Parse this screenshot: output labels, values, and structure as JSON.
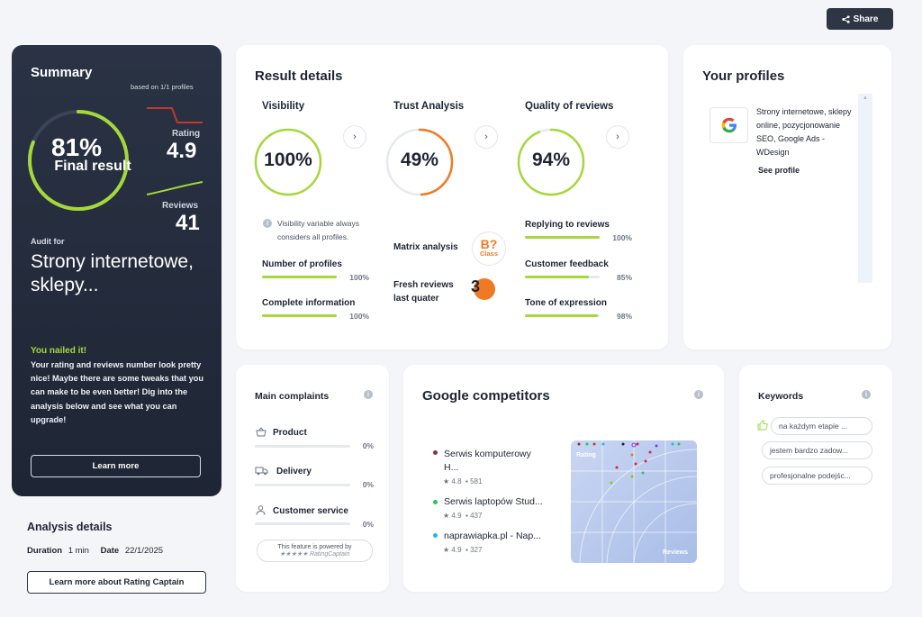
{
  "header": {
    "share_label": "Share"
  },
  "summary": {
    "title": "Summary",
    "based_on": "based on 1/1 profiles",
    "score": "81%",
    "score_value": 81,
    "score_label": "Final result",
    "rating_label": "Rating",
    "rating_value": "4.9",
    "reviews_label": "Reviews",
    "reviews_value": "41",
    "audit_for": "Audit for",
    "audit_name": "Strony internetowe, sklepy...",
    "nailed_title": "You nailed it!",
    "nailed_text": "Your rating and reviews number look pretty nice! Maybe there are some tweaks that you can make to be even better! Dig into the analysis below and see what you can upgrade!",
    "learn_more": "Learn more"
  },
  "analysis": {
    "title": "Analysis details",
    "duration_label": "Duration",
    "duration_value": "1 min",
    "date_label": "Date",
    "date_value": "22/1/2025",
    "button": "Learn more about Rating Captain"
  },
  "result_details": {
    "title": "Result details",
    "visibility": {
      "title": "Visibility",
      "value": "100%",
      "fraction": 1.0,
      "note": "Visibility variable always considers all profiles.",
      "metrics": [
        {
          "label": "Number of profiles",
          "pct": "100%",
          "fraction": 1.0
        },
        {
          "label": "Complete information",
          "pct": "100%",
          "fraction": 1.0
        }
      ]
    },
    "trust": {
      "title": "Trust Analysis",
      "value": "49%",
      "fraction": 0.49,
      "matrix_label": "Matrix analysis",
      "matrix_badge": "B?",
      "matrix_class": "Class",
      "fresh_label": "Fresh reviews last quater",
      "fresh_value": "3"
    },
    "quality": {
      "title": "Quality of reviews",
      "value": "94%",
      "fraction": 0.94,
      "metrics": [
        {
          "label": "Replying to reviews",
          "pct": "100%",
          "fraction": 1.0
        },
        {
          "label": "Customer feedback",
          "pct": "85%",
          "fraction": 0.85
        },
        {
          "label": "Tone of expression",
          "pct": "98%",
          "fraction": 0.98
        }
      ]
    }
  },
  "profiles": {
    "title": "Your profiles",
    "items": [
      {
        "text": "Strony internetowe, sklepy online, pozycjonowanie SEO, Google Ads - WDesign",
        "link": "See profile"
      }
    ]
  },
  "complaints": {
    "title": "Main complaints",
    "items": [
      {
        "label": "Product",
        "pct": "0%",
        "icon": "basket-icon"
      },
      {
        "label": "Delivery",
        "pct": "0%",
        "icon": "truck-icon"
      },
      {
        "label": "Customer service",
        "pct": "0%",
        "icon": "person-icon"
      }
    ],
    "powered_by": "This feature is powered by",
    "powered_brand": "RatingCaptain"
  },
  "competitors": {
    "title": "Google competitors",
    "items": [
      {
        "name": "Serwis komputerowy H...",
        "rating": "4.8",
        "reviews": "581",
        "color": "#8b2f4a"
      },
      {
        "name": "Serwis laptopów Stud...",
        "rating": "4.9",
        "reviews": "437",
        "color": "#22c55e"
      },
      {
        "name": "naprawiapka.pl - Nap...",
        "rating": "4.9",
        "reviews": "327",
        "color": "#22b8e6"
      }
    ],
    "chart_y_label": "Rating",
    "chart_x_label": "Reviews"
  },
  "keywords": {
    "title": "Keywords",
    "items": [
      "na każdym etapie ...",
      "jestem bardzo zadow...",
      "profesjonalne podejśc..."
    ]
  },
  "colors": {
    "accent_green": "#a6d83c",
    "orange": "#f07a23",
    "dark": "#2a3344"
  }
}
